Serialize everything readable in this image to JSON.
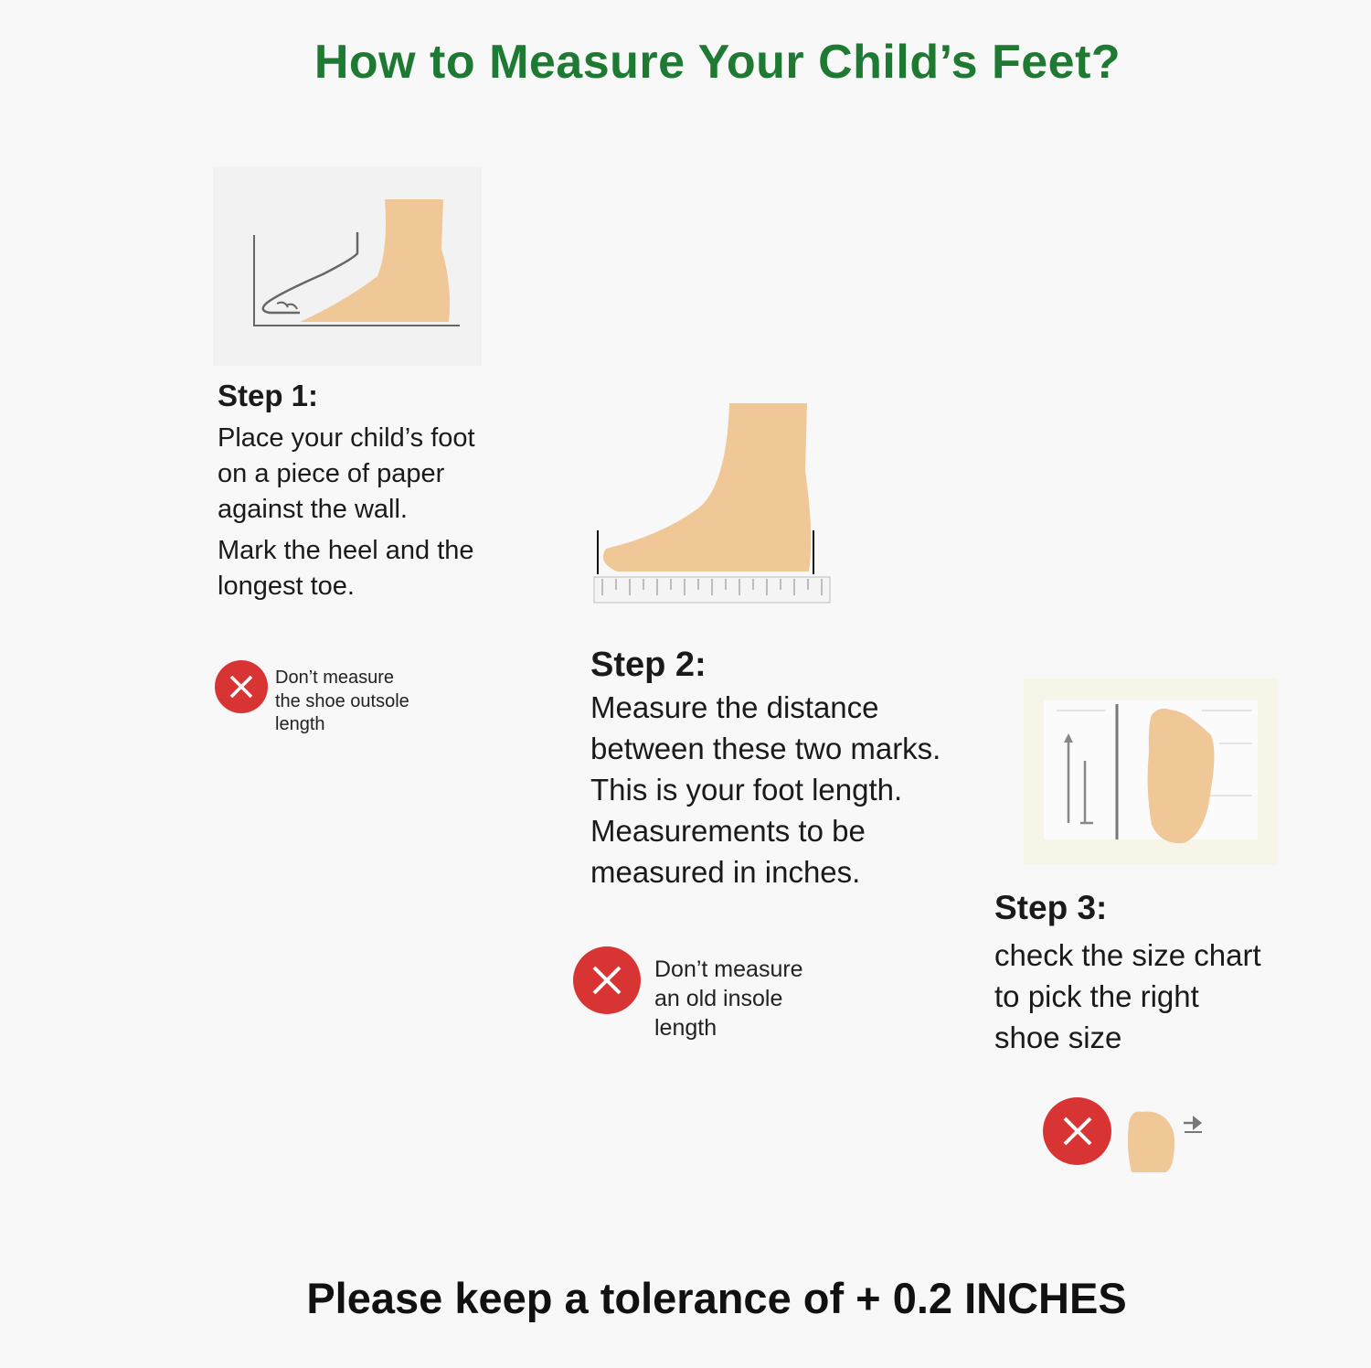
{
  "title": "How to Measure Your Child’s Feet?",
  "colors": {
    "title": "#1e7a32",
    "skin": "#f0c898",
    "error": "#d93434",
    "background": "#f8f8f8"
  },
  "steps": [
    {
      "heading": "Step 1:",
      "lines": [
        "Place your child’s foot",
        "on a piece of paper",
        "against the wall.",
        "Mark the heel and the",
        "longest toe."
      ],
      "warning": {
        "icon": "x-circle-icon",
        "lines": [
          "Don’t measure",
          "the shoe outsole",
          "length"
        ]
      }
    },
    {
      "heading": "Step 2:",
      "lines": [
        "Measure the distance",
        "between these two marks.",
        "This is your foot length.",
        "Measurements to be",
        "measured in inches."
      ],
      "warning": {
        "icon": "x-circle-icon",
        "lines": [
          "Don’t measure",
          "an old insole",
          "length"
        ]
      }
    },
    {
      "heading": "Step 3:",
      "lines": [
        "check the size chart",
        "to pick the right",
        "shoe size"
      ],
      "warning": {
        "icon": "x-circle-icon"
      }
    }
  ],
  "footer": "Please keep a tolerance of + 0.2 INCHES"
}
